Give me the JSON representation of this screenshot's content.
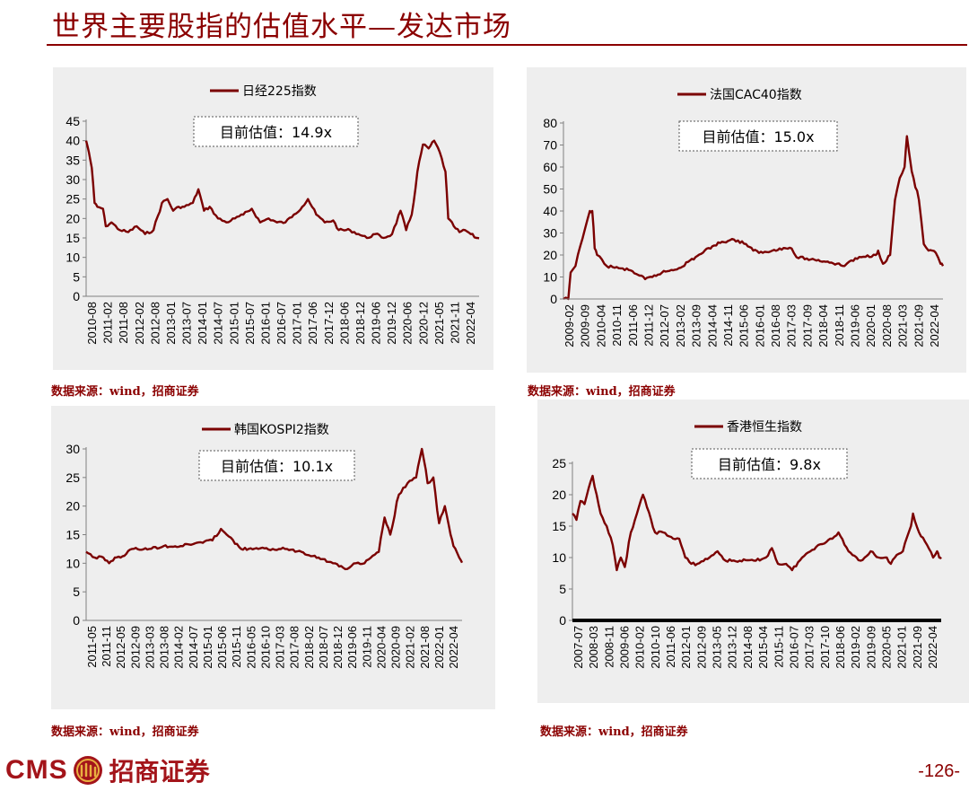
{
  "page": {
    "title": "世界主要股指的估值水平—发达市场",
    "source_label": "数据来源：wind，招商证券",
    "logo_text": "CMS",
    "brand_name": "招商证券",
    "page_number": "-126-",
    "accent_color": "#8B0000",
    "logo_icon": "cms-emblem-icon"
  },
  "chart_data": [
    {
      "type": "line",
      "series": [
        {
          "name": "日经225指数",
          "color": "#7B0000"
        }
      ],
      "annotation": "目前估值：14.9x",
      "ylim": [
        0,
        45
      ],
      "yticks": [
        0,
        5,
        10,
        15,
        20,
        25,
        30,
        35,
        40,
        45
      ],
      "xticks": [
        "2010-08",
        "2011-02",
        "2011-08",
        "2012-02",
        "2012-08",
        "2013-01",
        "2013-07",
        "2014-01",
        "2014-07",
        "2015-01",
        "2015-07",
        "2016-01",
        "2016-07",
        "2017-01",
        "2017-06",
        "2017-12",
        "2018-06",
        "2018-12",
        "2019-06",
        "2019-12",
        "2020-06",
        "2020-12",
        "2021-05",
        "2021-11",
        "2022-04"
      ],
      "points": [
        [
          "2010-08",
          40
        ],
        [
          "2010-09",
          37
        ],
        [
          "2010-10",
          33
        ],
        [
          "2010-11",
          24
        ],
        [
          "2010-12",
          23
        ],
        [
          "2011-02",
          22.5
        ],
        [
          "2011-03",
          18
        ],
        [
          "2011-05",
          19
        ],
        [
          "2011-08",
          17
        ],
        [
          "2011-11",
          16.5
        ],
        [
          "2012-02",
          18
        ],
        [
          "2012-05",
          16
        ],
        [
          "2012-08",
          17
        ],
        [
          "2012-11",
          24
        ],
        [
          "2013-01",
          25
        ],
        [
          "2013-03",
          22
        ],
        [
          "2013-05",
          23
        ],
        [
          "2013-07",
          23
        ],
        [
          "2013-10",
          24
        ],
        [
          "2013-12",
          27.5
        ],
        [
          "2014-02",
          22
        ],
        [
          "2014-04",
          23
        ],
        [
          "2014-07",
          20
        ],
        [
          "2014-10",
          19
        ],
        [
          "2015-01",
          20
        ],
        [
          "2015-04",
          21
        ],
        [
          "2015-07",
          22.5
        ],
        [
          "2015-10",
          19
        ],
        [
          "2016-01",
          20
        ],
        [
          "2016-04",
          19
        ],
        [
          "2016-07",
          19
        ],
        [
          "2016-10",
          21
        ],
        [
          "2017-01",
          23
        ],
        [
          "2017-03",
          25
        ],
        [
          "2017-06",
          21
        ],
        [
          "2017-09",
          19
        ],
        [
          "2017-12",
          19.5
        ],
        [
          "2018-02",
          17
        ],
        [
          "2018-06",
          17
        ],
        [
          "2018-09",
          16
        ],
        [
          "2018-12",
          15
        ],
        [
          "2019-03",
          16
        ],
        [
          "2019-06",
          15
        ],
        [
          "2019-09",
          16
        ],
        [
          "2019-12",
          22
        ],
        [
          "2020-02",
          17
        ],
        [
          "2020-04",
          21
        ],
        [
          "2020-06",
          32
        ],
        [
          "2020-08",
          39
        ],
        [
          "2020-10",
          38
        ],
        [
          "2020-12",
          40
        ],
        [
          "2021-02",
          37
        ],
        [
          "2021-04",
          32
        ],
        [
          "2021-05",
          20
        ],
        [
          "2021-07",
          18
        ],
        [
          "2021-09",
          16.5
        ],
        [
          "2021-11",
          17
        ],
        [
          "2022-01",
          16
        ],
        [
          "2022-03",
          15
        ],
        [
          "2022-04",
          14.9
        ]
      ]
    },
    {
      "type": "line",
      "series": [
        {
          "name": "法国CAC40指数",
          "color": "#7B0000"
        }
      ],
      "annotation": "目前估值：15.0x",
      "ylim": [
        0,
        80
      ],
      "yticks": [
        0,
        10,
        20,
        30,
        40,
        50,
        60,
        70,
        80
      ],
      "xticks": [
        "2009-02",
        "2009-09",
        "2010-04",
        "2010-11",
        "2011-06",
        "2011-12",
        "2012-07",
        "2013-02",
        "2013-09",
        "2014-04",
        "2014-11",
        "2015-06",
        "2016-01",
        "2016-08",
        "2017-03",
        "2017-09",
        "2018-04",
        "2018-11",
        "2019-06",
        "2020-01",
        "2020-08",
        "2021-03",
        "2021-09",
        "2022-04"
      ],
      "points": [
        [
          "2009-02",
          0
        ],
        [
          "2009-04",
          0
        ],
        [
          "2009-05",
          12
        ],
        [
          "2009-07",
          15
        ],
        [
          "2009-09",
          24
        ],
        [
          "2009-11",
          32
        ],
        [
          "2010-01",
          40
        ],
        [
          "2010-02",
          40
        ],
        [
          "2010-03",
          23
        ],
        [
          "2010-04",
          20
        ],
        [
          "2010-06",
          18
        ],
        [
          "2010-08",
          15
        ],
        [
          "2011-01",
          14
        ],
        [
          "2011-06",
          13
        ],
        [
          "2011-09",
          11
        ],
        [
          "2011-12",
          9
        ],
        [
          "2012-03",
          10
        ],
        [
          "2012-07",
          12
        ],
        [
          "2013-02",
          14
        ],
        [
          "2013-09",
          19
        ],
        [
          "2014-04",
          24
        ],
        [
          "2014-08",
          26
        ],
        [
          "2015-01",
          27
        ],
        [
          "2015-06",
          25
        ],
        [
          "2015-09",
          22
        ],
        [
          "2016-01",
          21
        ],
        [
          "2016-05",
          22
        ],
        [
          "2016-08",
          23
        ],
        [
          "2017-01",
          23
        ],
        [
          "2017-03",
          19
        ],
        [
          "2017-09",
          18
        ],
        [
          "2018-04",
          17
        ],
        [
          "2018-11",
          15
        ],
        [
          "2019-01",
          17
        ],
        [
          "2019-06",
          19
        ],
        [
          "2019-12",
          20
        ],
        [
          "2020-01",
          22
        ],
        [
          "2020-03",
          16
        ],
        [
          "2020-06",
          20
        ],
        [
          "2020-08",
          45
        ],
        [
          "2020-10",
          55
        ],
        [
          "2020-12",
          60
        ],
        [
          "2021-01",
          74
        ],
        [
          "2021-03",
          58
        ],
        [
          "2021-06",
          45
        ],
        [
          "2021-08",
          25
        ],
        [
          "2021-10",
          22
        ],
        [
          "2022-01",
          21
        ],
        [
          "2022-03",
          16
        ],
        [
          "2022-04",
          15
        ]
      ]
    },
    {
      "type": "line",
      "series": [
        {
          "name": "韩国KOSPI2指数",
          "color": "#7B0000"
        }
      ],
      "annotation": "目前估值：10.1x",
      "ylim": [
        0,
        30
      ],
      "yticks": [
        0,
        5,
        10,
        15,
        20,
        25,
        30
      ],
      "xticks": [
        "2011-05",
        "2011-11",
        "2012-05",
        "2012-09",
        "2013-03",
        "2013-08",
        "2014-02",
        "2014-07",
        "2015-01",
        "2015-06",
        "2015-11",
        "2016-05",
        "2016-10",
        "2017-03",
        "2017-08",
        "2018-02",
        "2018-07",
        "2018-12",
        "2019-06",
        "2019-11",
        "2020-04",
        "2020-09",
        "2021-02",
        "2021-08",
        "2022-01",
        "2022-04"
      ],
      "points": [
        [
          "2011-05",
          12
        ],
        [
          "2011-08",
          11
        ],
        [
          "2011-11",
          11
        ],
        [
          "2012-01",
          10
        ],
        [
          "2012-03",
          11
        ],
        [
          "2012-05",
          11
        ],
        [
          "2012-09",
          12.5
        ],
        [
          "2013-03",
          12.5
        ],
        [
          "2013-08",
          13
        ],
        [
          "2014-02",
          13
        ],
        [
          "2014-07",
          13.5
        ],
        [
          "2015-01",
          14
        ],
        [
          "2015-04",
          16
        ],
        [
          "2015-06",
          15
        ],
        [
          "2015-11",
          12.5
        ],
        [
          "2016-05",
          12.5
        ],
        [
          "2016-10",
          12.5
        ],
        [
          "2017-03",
          12.5
        ],
        [
          "2017-08",
          12
        ],
        [
          "2018-02",
          11
        ],
        [
          "2018-07",
          10
        ],
        [
          "2018-12",
          9
        ],
        [
          "2019-03",
          10
        ],
        [
          "2019-06",
          10
        ],
        [
          "2019-11",
          12
        ],
        [
          "2020-01",
          18
        ],
        [
          "2020-03",
          15
        ],
        [
          "2020-06",
          22
        ],
        [
          "2020-09",
          24
        ],
        [
          "2020-12",
          25
        ],
        [
          "2021-02",
          30
        ],
        [
          "2021-04",
          24
        ],
        [
          "2021-06",
          25
        ],
        [
          "2021-08",
          17
        ],
        [
          "2021-10",
          20
        ],
        [
          "2021-12",
          15
        ],
        [
          "2022-01",
          13
        ],
        [
          "2022-03",
          11
        ],
        [
          "2022-04",
          10.1
        ]
      ]
    },
    {
      "type": "line",
      "series": [
        {
          "name": "香港恒生指数",
          "color": "#7B0000"
        }
      ],
      "annotation": "目前估值：9.8x",
      "ylim": [
        0,
        25
      ],
      "yticks": [
        0,
        5,
        10,
        15,
        20,
        25
      ],
      "xticks": [
        "2007-07",
        "2008-03",
        "2008-11",
        "2009-06",
        "2010-02",
        "2010-10",
        "2011-06",
        "2012-01",
        "2012-09",
        "2013-05",
        "2013-12",
        "2014-08",
        "2015-04",
        "2015-11",
        "2016-07",
        "2017-03",
        "2017-10",
        "2018-06",
        "2019-02",
        "2019-09",
        "2020-05",
        "2021-01",
        "2021-09",
        "2022-04"
      ],
      "points": [
        [
          "2007-01",
          17
        ],
        [
          "2007-03",
          16
        ],
        [
          "2007-05",
          19
        ],
        [
          "2007-07",
          18.5
        ],
        [
          "2007-09",
          21
        ],
        [
          "2007-11",
          23
        ],
        [
          "2008-01",
          20
        ],
        [
          "2008-03",
          17
        ],
        [
          "2008-06",
          15
        ],
        [
          "2008-09",
          12
        ],
        [
          "2008-11",
          8
        ],
        [
          "2009-01",
          10
        ],
        [
          "2009-03",
          8.5
        ],
        [
          "2009-06",
          14
        ],
        [
          "2009-09",
          17
        ],
        [
          "2009-12",
          20
        ],
        [
          "2010-02",
          18
        ],
        [
          "2010-06",
          14
        ],
        [
          "2010-10",
          14
        ],
        [
          "2011-03",
          13
        ],
        [
          "2011-06",
          13
        ],
        [
          "2011-09",
          10
        ],
        [
          "2011-12",
          9
        ],
        [
          "2012-03",
          9
        ],
        [
          "2012-09",
          10
        ],
        [
          "2013-01",
          11
        ],
        [
          "2013-05",
          9.5
        ],
        [
          "2013-12",
          9.5
        ],
        [
          "2014-08",
          9.5
        ],
        [
          "2015-01",
          10
        ],
        [
          "2015-04",
          11.5
        ],
        [
          "2015-07",
          9
        ],
        [
          "2015-11",
          9
        ],
        [
          "2016-02",
          8
        ],
        [
          "2016-07",
          10
        ],
        [
          "2017-03",
          12
        ],
        [
          "2017-10",
          13
        ],
        [
          "2018-01",
          14
        ],
        [
          "2018-06",
          11
        ],
        [
          "2018-12",
          9.5
        ],
        [
          "2019-02",
          10
        ],
        [
          "2019-05",
          11
        ],
        [
          "2019-09",
          10
        ],
        [
          "2020-01",
          10
        ],
        [
          "2020-03",
          9
        ],
        [
          "2020-05",
          10
        ],
        [
          "2020-09",
          11
        ],
        [
          "2021-01",
          15
        ],
        [
          "2021-02",
          17
        ],
        [
          "2021-05",
          14
        ],
        [
          "2021-09",
          12
        ],
        [
          "2021-12",
          10
        ],
        [
          "2022-02",
          11
        ],
        [
          "2022-03",
          10
        ],
        [
          "2022-04",
          9.8
        ]
      ]
    }
  ]
}
